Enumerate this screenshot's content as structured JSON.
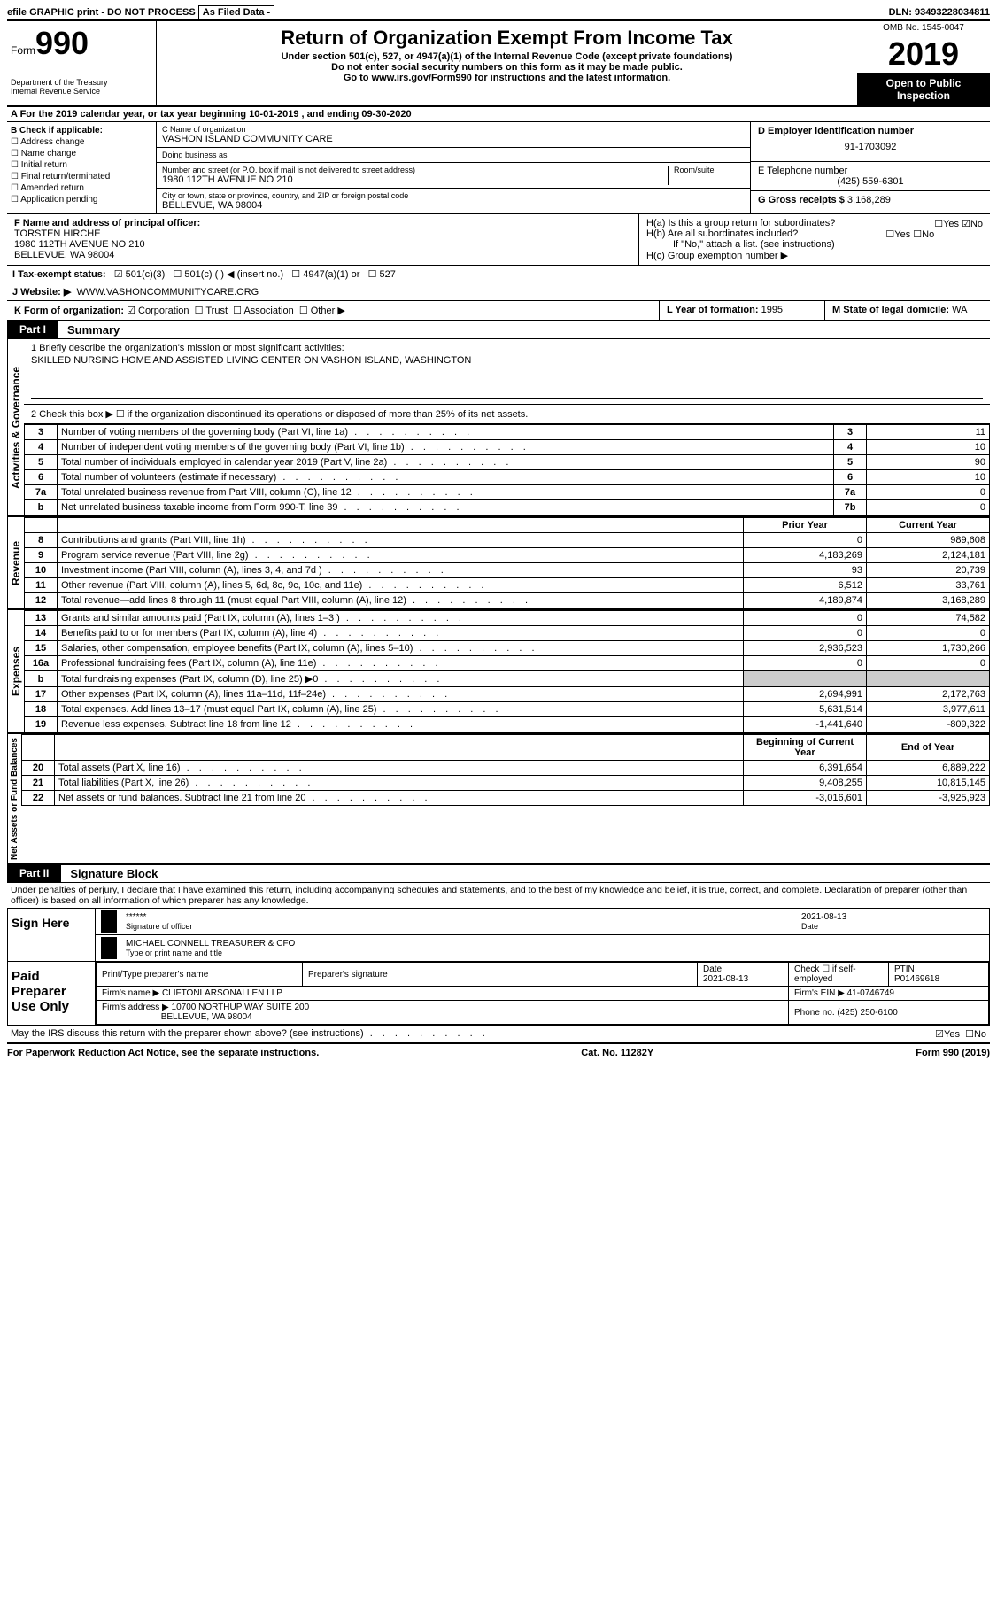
{
  "topbar": {
    "efile": "efile GRAPHIC print - DO NOT PROCESS",
    "asfiled": "As Filed Data -",
    "dln_label": "DLN:",
    "dln": "93493228034811"
  },
  "header": {
    "form_word": "Form",
    "form_num": "990",
    "dept": "Department of the Treasury\nInternal Revenue Service",
    "title": "Return of Organization Exempt From Income Tax",
    "sub1": "Under section 501(c), 527, or 4947(a)(1) of the Internal Revenue Code (except private foundations)",
    "sub2": "Do not enter social security numbers on this form as it may be made public.",
    "sub3_pre": "Go to ",
    "sub3_link": "www.irs.gov/Form990",
    "sub3_post": " for instructions and the latest information.",
    "omb": "OMB No. 1545-0047",
    "year": "2019",
    "open": "Open to Public Inspection"
  },
  "rowA": "A  For the 2019 calendar year, or tax year beginning 10-01-2019   , and ending 09-30-2020",
  "colB": {
    "title": "B Check if applicable:",
    "opts": [
      "Address change",
      "Name change",
      "Initial return",
      "Final return/terminated",
      "Amended return",
      "Application pending"
    ]
  },
  "colC": {
    "name_label": "C Name of organization",
    "name": "VASHON ISLAND COMMUNITY CARE",
    "dba_label": "Doing business as",
    "dba": "",
    "addr_label": "Number and street (or P.O. box if mail is not delivered to street address)",
    "room_label": "Room/suite",
    "addr": "1980 112TH AVENUE NO 210",
    "city_label": "City or town, state or province, country, and ZIP or foreign postal code",
    "city": "BELLEVUE, WA  98004"
  },
  "colD": {
    "ein_label": "D Employer identification number",
    "ein": "91-1703092",
    "tel_label": "E Telephone number",
    "tel": "(425) 559-6301",
    "gross_label": "G Gross receipts $",
    "gross": "3,168,289"
  },
  "colF": {
    "label": "F  Name and address of principal officer:",
    "name": "TORSTEN HIRCHE",
    "addr1": "1980 112TH AVENUE NO 210",
    "addr2": "BELLEVUE, WA  98004"
  },
  "colH": {
    "ha": "H(a)  Is this a group return for subordinates?",
    "ha_yes": "Yes",
    "ha_no": "No",
    "hb": "H(b)  Are all subordinates included?",
    "hb_note": "If \"No,\" attach a list. (see instructions)",
    "hc": "H(c)  Group exemption number ▶"
  },
  "rowI": {
    "label": "I   Tax-exempt status:",
    "o1": "501(c)(3)",
    "o2": "501(c) (   ) ◀ (insert no.)",
    "o3": "4947(a)(1) or",
    "o4": "527"
  },
  "rowJ": {
    "label": "J   Website: ▶",
    "val": "WWW.VASHONCOMMUNITYCARE.ORG"
  },
  "rowK": {
    "label": "K Form of organization:",
    "opts": [
      "Corporation",
      "Trust",
      "Association",
      "Other ▶"
    ],
    "l_label": "L Year of formation:",
    "l_val": "1995",
    "m_label": "M State of legal domicile:",
    "m_val": "WA"
  },
  "part1": {
    "tab": "Part I",
    "title": "Summary",
    "q1": "1  Briefly describe the organization's mission or most significant activities:",
    "mission": "SKILLED NURSING HOME AND ASSISTED LIVING CENTER ON VASHON ISLAND, WASHINGTON",
    "q2": "2   Check this box ▶ ☐  if the organization discontinued its operations or disposed of more than 25% of its net assets."
  },
  "gov_lines": [
    {
      "n": "3",
      "d": "Number of voting members of the governing body (Part VI, line 1a)",
      "c": "3",
      "v": "11"
    },
    {
      "n": "4",
      "d": "Number of independent voting members of the governing body (Part VI, line 1b)",
      "c": "4",
      "v": "10"
    },
    {
      "n": "5",
      "d": "Total number of individuals employed in calendar year 2019 (Part V, line 2a)",
      "c": "5",
      "v": "90"
    },
    {
      "n": "6",
      "d": "Total number of volunteers (estimate if necessary)",
      "c": "6",
      "v": "10"
    },
    {
      "n": "7a",
      "d": "Total unrelated business revenue from Part VIII, column (C), line 12",
      "c": "7a",
      "v": "0"
    },
    {
      "n": "b",
      "d": "Net unrelated business taxable income from Form 990-T, line 39",
      "c": "7b",
      "v": "0"
    }
  ],
  "rev_hdr": {
    "prior": "Prior Year",
    "curr": "Current Year"
  },
  "rev_lines": [
    {
      "n": "8",
      "d": "Contributions and grants (Part VIII, line 1h)",
      "p": "0",
      "c": "989,608"
    },
    {
      "n": "9",
      "d": "Program service revenue (Part VIII, line 2g)",
      "p": "4,183,269",
      "c": "2,124,181"
    },
    {
      "n": "10",
      "d": "Investment income (Part VIII, column (A), lines 3, 4, and 7d )",
      "p": "93",
      "c": "20,739"
    },
    {
      "n": "11",
      "d": "Other revenue (Part VIII, column (A), lines 5, 6d, 8c, 9c, 10c, and 11e)",
      "p": "6,512",
      "c": "33,761"
    },
    {
      "n": "12",
      "d": "Total revenue—add lines 8 through 11 (must equal Part VIII, column (A), line 12)",
      "p": "4,189,874",
      "c": "3,168,289"
    }
  ],
  "exp_lines": [
    {
      "n": "13",
      "d": "Grants and similar amounts paid (Part IX, column (A), lines 1–3 )",
      "p": "0",
      "c": "74,582"
    },
    {
      "n": "14",
      "d": "Benefits paid to or for members (Part IX, column (A), line 4)",
      "p": "0",
      "c": "0"
    },
    {
      "n": "15",
      "d": "Salaries, other compensation, employee benefits (Part IX, column (A), lines 5–10)",
      "p": "2,936,523",
      "c": "1,730,266"
    },
    {
      "n": "16a",
      "d": "Professional fundraising fees (Part IX, column (A), line 11e)",
      "p": "0",
      "c": "0"
    },
    {
      "n": "b",
      "d": "Total fundraising expenses (Part IX, column (D), line 25) ▶0",
      "p": "",
      "c": ""
    },
    {
      "n": "17",
      "d": "Other expenses (Part IX, column (A), lines 11a–11d, 11f–24e)",
      "p": "2,694,991",
      "c": "2,172,763"
    },
    {
      "n": "18",
      "d": "Total expenses. Add lines 13–17 (must equal Part IX, column (A), line 25)",
      "p": "5,631,514",
      "c": "3,977,611"
    },
    {
      "n": "19",
      "d": "Revenue less expenses. Subtract line 18 from line 12",
      "p": "-1,441,640",
      "c": "-809,322"
    }
  ],
  "na_hdr": {
    "beg": "Beginning of Current Year",
    "end": "End of Year"
  },
  "na_lines": [
    {
      "n": "20",
      "d": "Total assets (Part X, line 16)",
      "p": "6,391,654",
      "c": "6,889,222"
    },
    {
      "n": "21",
      "d": "Total liabilities (Part X, line 26)",
      "p": "9,408,255",
      "c": "10,815,145"
    },
    {
      "n": "22",
      "d": "Net assets or fund balances. Subtract line 21 from line 20",
      "p": "-3,016,601",
      "c": "-3,925,923"
    }
  ],
  "sections": {
    "gov": "Activities & Governance",
    "rev": "Revenue",
    "exp": "Expenses",
    "na": "Net Assets or Fund Balances"
  },
  "part2": {
    "tab": "Part II",
    "title": "Signature Block",
    "perjury": "Under penalties of perjury, I declare that I have examined this return, including accompanying schedules and statements, and to the best of my knowledge and belief, it is true, correct, and complete. Declaration of preparer (other than officer) is based on all information of which preparer has any knowledge."
  },
  "sign": {
    "here": "Sign Here",
    "stars": "******",
    "sig_label": "Signature of officer",
    "date": "2021-08-13",
    "date_label": "Date",
    "name": "MICHAEL CONNELL TREASURER & CFO",
    "name_label": "Type or print name and title"
  },
  "prep": {
    "label": "Paid Preparer Use Only",
    "h_name": "Print/Type preparer's name",
    "h_sig": "Preparer's signature",
    "h_date": "Date",
    "date": "2021-08-13",
    "h_self": "Check ☐ if self-employed",
    "h_ptin": "PTIN",
    "ptin": "P01469618",
    "firm_label": "Firm's name    ▶",
    "firm": "CLIFTONLARSONALLEN LLP",
    "ein_label": "Firm's EIN ▶",
    "ein": "41-0746749",
    "addr_label": "Firm's address ▶",
    "addr1": "10700 NORTHUP WAY SUITE 200",
    "addr2": "BELLEVUE, WA  98004",
    "phone_label": "Phone no.",
    "phone": "(425) 250-6100"
  },
  "discuss": "May the IRS discuss this return with the preparer shown above? (see instructions)",
  "discuss_yes": "Yes",
  "discuss_no": "No",
  "footer": {
    "pra": "For Paperwork Reduction Act Notice, see the separate instructions.",
    "cat": "Cat. No. 11282Y",
    "form": "Form 990 (2019)"
  }
}
